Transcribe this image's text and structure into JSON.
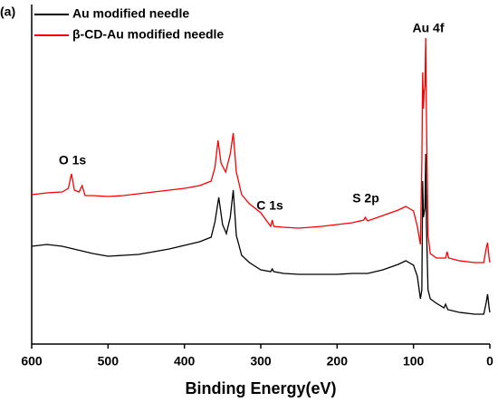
{
  "chart_data": {
    "type": "line",
    "panel_label": "(a)",
    "x_label": "Binding Energy(eV)",
    "xlim": [
      600,
      0
    ],
    "xticks": [
      600,
      500,
      400,
      300,
      200,
      100,
      0
    ],
    "ylim": [
      0,
      375
    ],
    "legend": "upper left",
    "annotations": [
      "O 1s",
      "C 1s",
      "S 2p",
      "Au 4f"
    ],
    "series": [
      {
        "name": "Au modified needle",
        "color": "#000000",
        "x": [
          600,
          580,
          560,
          540,
          520,
          500,
          480,
          460,
          440,
          420,
          400,
          380,
          365,
          360,
          355,
          350,
          345,
          340,
          336,
          332,
          325,
          315,
          300,
          287,
          285,
          283,
          270,
          250,
          220,
          200,
          180,
          160,
          140,
          120,
          110,
          100,
          95,
          91,
          89,
          88,
          87,
          85,
          84,
          83,
          81,
          78,
          70,
          60,
          58,
          55,
          40,
          20,
          8,
          5,
          3,
          1,
          0
        ],
        "values": [
          108,
          110,
          108,
          104,
          100,
          97,
          98,
          99,
          102,
          105,
          109,
          113,
          118,
          135,
          162,
          132,
          122,
          140,
          170,
          120,
          98,
          90,
          82,
          80,
          83,
          80,
          78,
          77,
          77,
          77,
          78,
          78,
          82,
          88,
          92,
          87,
          75,
          50,
          60,
          180,
          140,
          150,
          210,
          130,
          60,
          50,
          45,
          40,
          44,
          38,
          35,
          33,
          33,
          45,
          55,
          40,
          35
        ]
      },
      {
        "name": "β-CD-Au modified needle",
        "color": "#ff0000",
        "x": [
          600,
          580,
          560,
          552,
          548,
          544,
          538,
          534,
          530,
          520,
          500,
          480,
          460,
          440,
          420,
          400,
          380,
          365,
          360,
          356,
          352,
          346,
          340,
          336,
          332,
          325,
          315,
          300,
          287,
          285,
          283,
          270,
          250,
          220,
          200,
          180,
          165,
          163,
          160,
          140,
          120,
          110,
          100,
          95,
          91,
          89,
          88,
          87,
          86,
          85,
          84,
          83,
          81,
          78,
          70,
          58,
          56,
          54,
          40,
          20,
          8,
          5,
          3,
          1,
          0
        ],
        "values": [
          165,
          167,
          168,
          172,
          188,
          170,
          168,
          175,
          164,
          164,
          163,
          164,
          166,
          168,
          170,
          172,
          175,
          180,
          195,
          225,
          200,
          190,
          210,
          233,
          190,
          165,
          155,
          145,
          130,
          137,
          130,
          129,
          128,
          130,
          132,
          134,
          137,
          140,
          136,
          142,
          148,
          152,
          147,
          130,
          110,
          200,
          300,
          260,
          280,
          285,
          338,
          250,
          120,
          100,
          95,
          95,
          102,
          95,
          92,
          90,
          90,
          105,
          112,
          95,
          90
        ]
      }
    ]
  }
}
